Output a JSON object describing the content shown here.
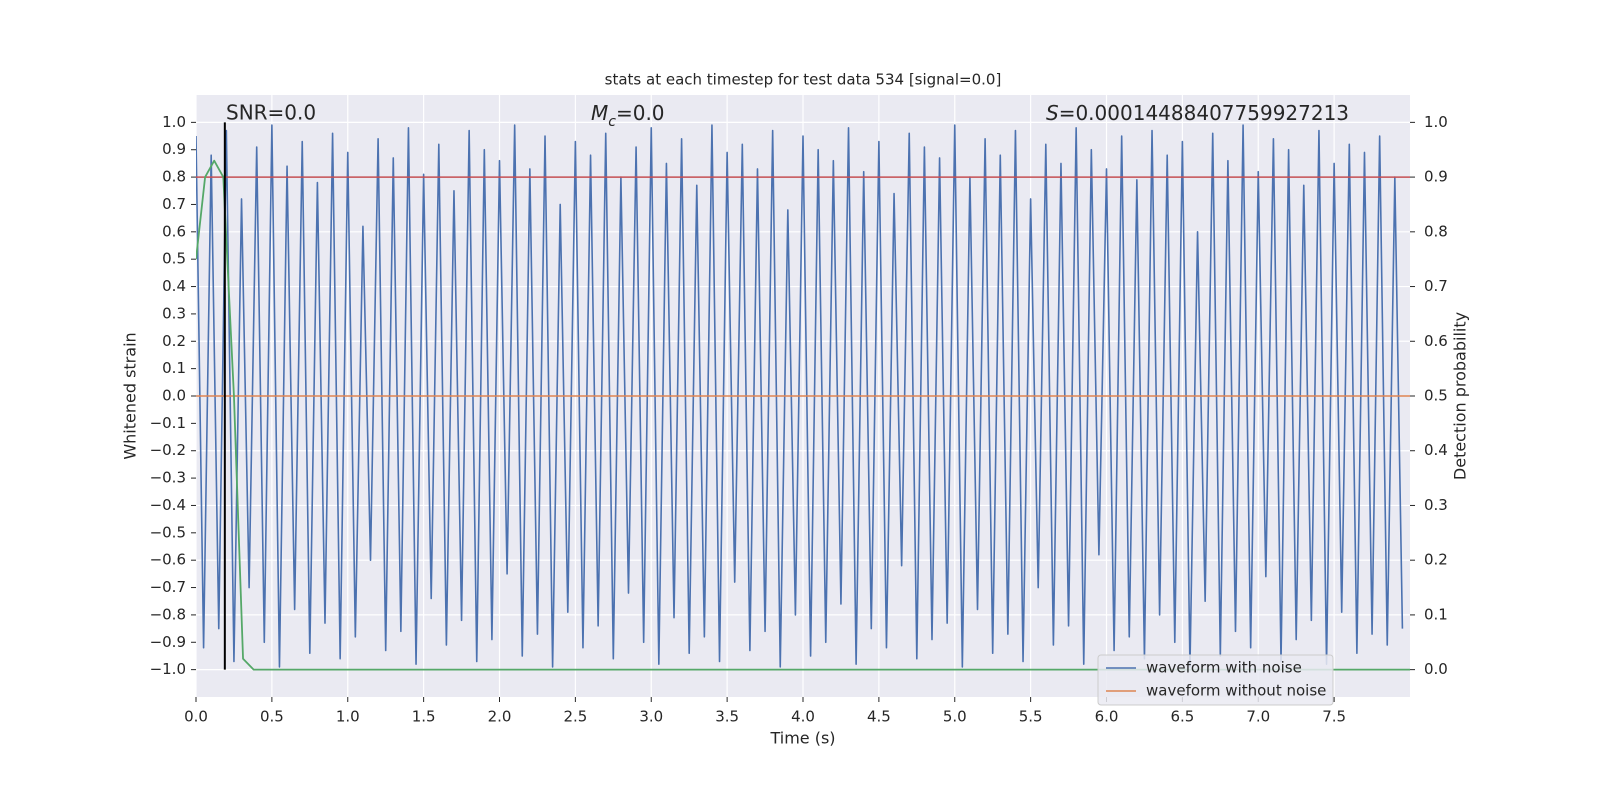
{
  "chart_data": {
    "type": "line",
    "title": "stats at each timestep for test data 534 [signal=0.0]",
    "x_label": "Time (s)",
    "y_label": "Whitened strain",
    "y2_label": "Detection probability",
    "annotations": [
      {
        "text": "SNR=0.0"
      },
      {
        "symbol": "M",
        "subscript": "c",
        "text": "=0.0"
      },
      {
        "symbol": "S",
        "text": "=0.00014488407759927213"
      }
    ],
    "xlim": [
      0,
      8.0
    ],
    "ylim": [
      -1.1,
      1.1
    ],
    "y2lim": [
      -0.05,
      1.05
    ],
    "grid": true,
    "legend": "lower right",
    "xticks": [
      {
        "value": 0,
        "label": "0.0"
      },
      {
        "value": 0.5,
        "label": "0.5"
      },
      {
        "value": 1,
        "label": "1.0"
      },
      {
        "value": 1.5,
        "label": "1.5"
      },
      {
        "value": 2,
        "label": "2.0"
      },
      {
        "value": 2.5,
        "label": "2.5"
      },
      {
        "value": 3,
        "label": "3.0"
      },
      {
        "value": 3.5,
        "label": "3.5"
      },
      {
        "value": 4,
        "label": "4.0"
      },
      {
        "value": 4.5,
        "label": "4.5"
      },
      {
        "value": 5,
        "label": "5.0"
      },
      {
        "value": 5.5,
        "label": "5.5"
      },
      {
        "value": 6,
        "label": "6.0"
      },
      {
        "value": 6.5,
        "label": "6.5"
      },
      {
        "value": 7,
        "label": "7.0"
      },
      {
        "value": 7.5,
        "label": "7.5"
      }
    ],
    "yticks": [
      {
        "value": -1.0,
        "label": "−1.0"
      },
      {
        "value": -0.9,
        "label": "−0.9"
      },
      {
        "value": -0.8,
        "label": "−0.8"
      },
      {
        "value": -0.7,
        "label": "−0.7"
      },
      {
        "value": -0.6,
        "label": "−0.6"
      },
      {
        "value": -0.5,
        "label": "−0.5"
      },
      {
        "value": -0.4,
        "label": "−0.4"
      },
      {
        "value": -0.3,
        "label": "−0.3"
      },
      {
        "value": -0.2,
        "label": "−0.2"
      },
      {
        "value": -0.1,
        "label": "−0.1"
      },
      {
        "value": 0,
        "label": "0.0"
      },
      {
        "value": 0.1,
        "label": "0.1"
      },
      {
        "value": 0.2,
        "label": "0.2"
      },
      {
        "value": 0.3,
        "label": "0.3"
      },
      {
        "value": 0.4,
        "label": "0.4"
      },
      {
        "value": 0.5,
        "label": "0.5"
      },
      {
        "value": 0.6,
        "label": "0.6"
      },
      {
        "value": 0.7,
        "label": "0.7"
      },
      {
        "value": 0.8,
        "label": "0.8"
      },
      {
        "value": 0.9,
        "label": "0.9"
      },
      {
        "value": 1.0,
        "label": "1.0"
      }
    ],
    "y2ticks": [
      {
        "value": 0,
        "label": "0.0"
      },
      {
        "value": 0.1,
        "label": "0.1"
      },
      {
        "value": 0.2,
        "label": "0.2"
      },
      {
        "value": 0.3,
        "label": "0.3"
      },
      {
        "value": 0.4,
        "label": "0.4"
      },
      {
        "value": 0.5,
        "label": "0.5"
      },
      {
        "value": 0.6,
        "label": "0.6"
      },
      {
        "value": 0.7,
        "label": "0.7"
      },
      {
        "value": 0.8,
        "label": "0.8"
      },
      {
        "value": 0.9,
        "label": "0.9"
      },
      {
        "value": 1.0,
        "label": "1.0"
      }
    ],
    "series": [
      {
        "name": "waveform with noise",
        "color": "#4c72b0",
        "x": [
          0.0,
          0.05,
          0.1,
          0.15,
          0.2,
          0.25,
          0.3,
          0.35,
          0.4,
          0.45,
          0.5,
          0.55,
          0.6,
          0.65,
          0.7,
          0.75,
          0.8,
          0.85,
          0.9,
          0.95,
          1.0,
          1.05,
          1.1,
          1.15,
          1.2,
          1.25,
          1.3,
          1.35,
          1.4,
          1.45,
          1.5,
          1.55,
          1.6,
          1.65,
          1.7,
          1.75,
          1.8,
          1.85,
          1.9,
          1.95,
          2.0,
          2.05,
          2.1,
          2.15,
          2.2,
          2.25,
          2.3,
          2.35,
          2.4,
          2.45,
          2.5,
          2.55,
          2.6,
          2.65,
          2.7,
          2.75,
          2.8,
          2.85,
          2.9,
          2.95,
          3.0,
          3.05,
          3.1,
          3.15,
          3.2,
          3.25,
          3.3,
          3.35,
          3.4,
          3.45,
          3.5,
          3.55,
          3.6,
          3.65,
          3.7,
          3.75,
          3.8,
          3.85,
          3.9,
          3.95,
          4.0,
          4.05,
          4.1,
          4.15,
          4.2,
          4.25,
          4.3,
          4.35,
          4.4,
          4.45,
          4.5,
          4.55,
          4.6,
          4.65,
          4.7,
          4.75,
          4.8,
          4.85,
          4.9,
          4.95,
          5.0,
          5.05,
          5.1,
          5.15,
          5.2,
          5.25,
          5.3,
          5.35,
          5.4,
          5.45,
          5.5,
          5.55,
          5.6,
          5.65,
          5.7,
          5.75,
          5.8,
          5.85,
          5.9,
          5.95,
          6.0,
          6.05,
          6.1,
          6.15,
          6.2,
          6.25,
          6.3,
          6.35,
          6.4,
          6.45,
          6.5,
          6.55,
          6.6,
          6.65,
          6.7,
          6.75,
          6.8,
          6.85,
          6.9,
          6.95,
          7.0,
          7.05,
          7.1,
          7.15,
          7.2,
          7.25,
          7.3,
          7.35,
          7.4,
          7.45,
          7.5,
          7.55,
          7.6,
          7.65,
          7.7,
          7.75,
          7.8,
          7.85,
          7.9,
          7.95
        ],
        "values": [
          0.95,
          -0.92,
          0.88,
          -0.85,
          0.97,
          -0.97,
          0.72,
          -0.7,
          0.91,
          -0.9,
          0.99,
          -0.99,
          0.84,
          -0.78,
          0.93,
          -0.94,
          0.78,
          -0.83,
          0.96,
          -0.96,
          0.89,
          -0.88,
          0.62,
          -0.6,
          0.94,
          -0.93,
          0.87,
          -0.86,
          0.98,
          -0.98,
          0.81,
          -0.74,
          0.92,
          -0.91,
          0.75,
          -0.82,
          0.97,
          -0.97,
          0.9,
          -0.89,
          0.86,
          -0.65,
          0.99,
          -0.95,
          0.83,
          -0.87,
          0.95,
          -0.99,
          0.7,
          -0.79,
          0.93,
          -0.92,
          0.88,
          -0.84,
          0.96,
          -0.96,
          0.8,
          -0.72,
          0.91,
          -0.9,
          0.98,
          -0.98,
          0.85,
          -0.81,
          0.94,
          -0.94,
          0.77,
          -0.88,
          0.99,
          -0.97,
          0.89,
          -0.68,
          0.92,
          -0.93,
          0.83,
          -0.86,
          0.97,
          -0.99,
          0.68,
          -0.8,
          0.95,
          -0.95,
          0.9,
          -0.9,
          0.86,
          -0.76,
          0.98,
          -0.98,
          0.82,
          -0.85,
          0.93,
          -0.92,
          0.74,
          -0.62,
          0.96,
          -0.96,
          0.91,
          -0.89,
          0.87,
          -0.83,
          0.99,
          -0.99,
          0.8,
          -0.78,
          0.94,
          -0.94,
          0.88,
          -0.87,
          0.97,
          -0.97,
          0.72,
          -0.7,
          0.92,
          -0.91,
          0.85,
          -0.84,
          0.98,
          -0.98,
          0.9,
          -0.58,
          0.83,
          -0.93,
          0.95,
          -0.88,
          0.79,
          -0.96,
          0.97,
          -0.8,
          0.88,
          -0.9,
          0.93,
          -0.99,
          0.6,
          -0.75,
          0.96,
          -0.95,
          0.86,
          -0.86,
          0.99,
          -0.92,
          0.82,
          -0.66,
          0.94,
          -0.97,
          0.9,
          -0.89,
          0.77,
          -0.82,
          0.97,
          -0.98,
          0.85,
          -0.79,
          0.92,
          -0.94,
          0.89,
          -0.87,
          0.95,
          -0.91,
          0.8,
          -0.85
        ]
      },
      {
        "name": "waveform without noise",
        "color": "#dd8452",
        "x": [
          0,
          8.0
        ],
        "values": [
          0,
          0
        ]
      }
    ],
    "probability": {
      "color": "#55a868",
      "axis": "y2",
      "x": [
        0,
        0.06,
        0.12,
        0.18,
        0.25,
        0.31,
        0.38,
        8.0
      ],
      "values": [
        0.75,
        0.9,
        0.93,
        0.9,
        0.5,
        0.02,
        0.0,
        0.0
      ]
    },
    "threshold": {
      "color": "#c44e52",
      "value": 0.8
    },
    "marker_line": {
      "color": "#000000",
      "x": 0.19,
      "values": [
        -1.0,
        1.0
      ]
    }
  }
}
